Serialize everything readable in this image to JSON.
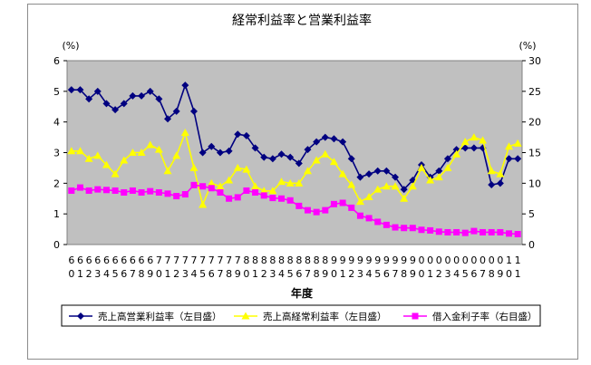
{
  "chart_data": {
    "type": "line",
    "title": "経常利益率と営業利益率",
    "xlabel": "年度",
    "left_unit": "(%)",
    "right_unit": "(%)",
    "left_axis": {
      "min": 0,
      "max": 6,
      "ticks": [
        "0",
        "1",
        "2",
        "3",
        "4",
        "5",
        "6"
      ]
    },
    "right_axis": {
      "min": 0,
      "max": 30,
      "ticks": [
        "0",
        "5",
        "10",
        "15",
        "20",
        "25",
        "30"
      ]
    },
    "grid": false,
    "legend_position": "bottom",
    "plot_background": "#c0c0c0",
    "x": [
      "60",
      "61",
      "62",
      "63",
      "64",
      "65",
      "66",
      "67",
      "68",
      "69",
      "70",
      "71",
      "72",
      "73",
      "74",
      "75",
      "76",
      "77",
      "78",
      "79",
      "80",
      "81",
      "82",
      "83",
      "84",
      "85",
      "86",
      "87",
      "88",
      "89",
      "90",
      "91",
      "92",
      "93",
      "94",
      "95",
      "96",
      "97",
      "98",
      "99",
      "00",
      "01",
      "02",
      "03",
      "04",
      "05",
      "06",
      "07",
      "08",
      "09",
      "10",
      "11"
    ],
    "x_tick_labels": [
      [
        "6",
        "0"
      ],
      [
        "6",
        "1"
      ],
      [
        "6",
        "2"
      ],
      [
        "6",
        "3"
      ],
      [
        "6",
        "4"
      ],
      [
        "6",
        "5"
      ],
      [
        "6",
        "6"
      ],
      [
        "6",
        "7"
      ],
      [
        "6",
        "8"
      ],
      [
        "6",
        "9"
      ],
      [
        "7",
        "0"
      ],
      [
        "7",
        "1"
      ],
      [
        "7",
        "2"
      ],
      [
        "7",
        "3"
      ],
      [
        "7",
        "4"
      ],
      [
        "7",
        "5"
      ],
      [
        "7",
        "6"
      ],
      [
        "7",
        "7"
      ],
      [
        "7",
        "8"
      ],
      [
        "7",
        "9"
      ],
      [
        "8",
        "0"
      ],
      [
        "8",
        "1"
      ],
      [
        "8",
        "2"
      ],
      [
        "8",
        "3"
      ],
      [
        "8",
        "4"
      ],
      [
        "8",
        "5"
      ],
      [
        "8",
        "6"
      ],
      [
        "8",
        "7"
      ],
      [
        "8",
        "8"
      ],
      [
        "8",
        "9"
      ],
      [
        "9",
        "0"
      ],
      [
        "9",
        "1"
      ],
      [
        "9",
        "2"
      ],
      [
        "9",
        "3"
      ],
      [
        "9",
        "4"
      ],
      [
        "9",
        "5"
      ],
      [
        "9",
        "6"
      ],
      [
        "9",
        "7"
      ],
      [
        "9",
        "8"
      ],
      [
        "9",
        "9"
      ],
      [
        "0",
        "0"
      ],
      [
        "0",
        "1"
      ],
      [
        "0",
        "2"
      ],
      [
        "0",
        "3"
      ],
      [
        "0",
        "4"
      ],
      [
        "0",
        "5"
      ],
      [
        "0",
        "6"
      ],
      [
        "0",
        "7"
      ],
      [
        "0",
        "8"
      ],
      [
        "0",
        "9"
      ],
      [
        "1",
        "0"
      ],
      [
        "1",
        "1"
      ]
    ],
    "series": [
      {
        "name": "売上高営業利益率（左目盛）",
        "axis": "left",
        "color": "#000080",
        "marker": "diamond",
        "values": [
          5.05,
          5.05,
          4.75,
          5.0,
          4.6,
          4.4,
          4.6,
          4.85,
          4.85,
          5.0,
          4.75,
          4.1,
          4.35,
          5.2,
          4.35,
          3.0,
          3.2,
          3.0,
          3.05,
          3.6,
          3.55,
          3.15,
          2.85,
          2.8,
          2.95,
          2.85,
          2.65,
          3.1,
          3.35,
          3.5,
          3.45,
          3.35,
          2.8,
          2.2,
          2.3,
          2.4,
          2.4,
          2.2,
          1.8,
          2.1,
          2.6,
          2.2,
          2.4,
          2.8,
          3.1,
          3.15,
          3.15,
          3.15,
          1.95,
          2.0,
          2.8,
          2.8
        ]
      },
      {
        "name": "売上高経常利益率（左目盛）",
        "axis": "left",
        "color": "#ffff00",
        "marker": "triangle",
        "values": [
          3.05,
          3.05,
          2.8,
          2.9,
          2.6,
          2.3,
          2.75,
          3.0,
          3.0,
          3.25,
          3.1,
          2.4,
          2.9,
          3.65,
          2.5,
          1.3,
          2.0,
          1.9,
          2.1,
          2.5,
          2.45,
          1.9,
          1.75,
          1.75,
          2.05,
          2.0,
          2.0,
          2.4,
          2.75,
          2.95,
          2.7,
          2.3,
          1.95,
          1.4,
          1.55,
          1.8,
          1.9,
          1.9,
          1.5,
          1.9,
          2.5,
          2.1,
          2.2,
          2.5,
          2.95,
          3.35,
          3.5,
          3.4,
          2.4,
          2.3,
          3.2,
          3.3
        ]
      },
      {
        "name": "借入金利子率（右目盛）",
        "axis": "right",
        "color": "#ff00ff",
        "marker": "square",
        "values": [
          8.8,
          9.3,
          8.8,
          9.0,
          8.9,
          8.8,
          8.5,
          8.8,
          8.5,
          8.7,
          8.5,
          8.3,
          7.9,
          8.2,
          9.7,
          9.5,
          9.2,
          8.5,
          7.5,
          7.7,
          8.8,
          8.5,
          8.0,
          7.6,
          7.5,
          7.2,
          6.3,
          5.6,
          5.3,
          5.6,
          6.6,
          6.8,
          6.0,
          4.7,
          4.3,
          3.7,
          3.2,
          2.8,
          2.7,
          2.7,
          2.4,
          2.3,
          2.1,
          2.0,
          2.0,
          1.9,
          2.2,
          2.0,
          2.0,
          2.0,
          1.8,
          1.7
        ]
      }
    ]
  }
}
